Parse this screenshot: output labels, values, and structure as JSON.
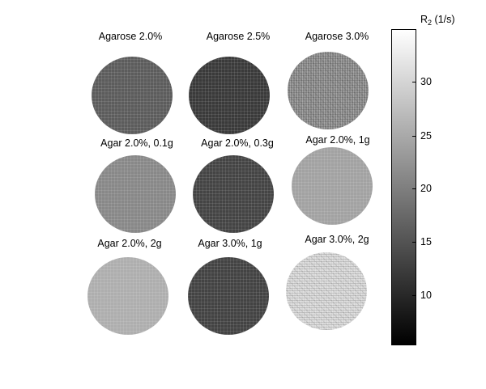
{
  "panels": [
    {
      "title": "Agarose 2.0%",
      "gray": "#5c5c5c"
    },
    {
      "title": "Agarose 2.5%",
      "gray": "#3a3a3a"
    },
    {
      "title": "Agarose 3.0%",
      "gray": "#8a8a8a"
    },
    {
      "title": "Agar 2.0%, 0.1g",
      "gray": "#888888"
    },
    {
      "title": "Agar 2.0%, 0.3g",
      "gray": "#444444"
    },
    {
      "title": "Agar 2.0%, 1g",
      "gray": "#a2a2a2"
    },
    {
      "title": "Agar 2.0%, 2g",
      "gray": "#aeaeae"
    },
    {
      "title": "Agar 3.0%, 1g",
      "gray": "#434343"
    },
    {
      "title": "Agar 3.0%, 2g",
      "gray": "#d8d8d8"
    }
  ],
  "colorbar": {
    "label": "R",
    "label_sub": "2",
    "label_unit": "(1/s)",
    "ticks": [
      "30",
      "25",
      "20",
      "15",
      "10"
    ]
  }
}
